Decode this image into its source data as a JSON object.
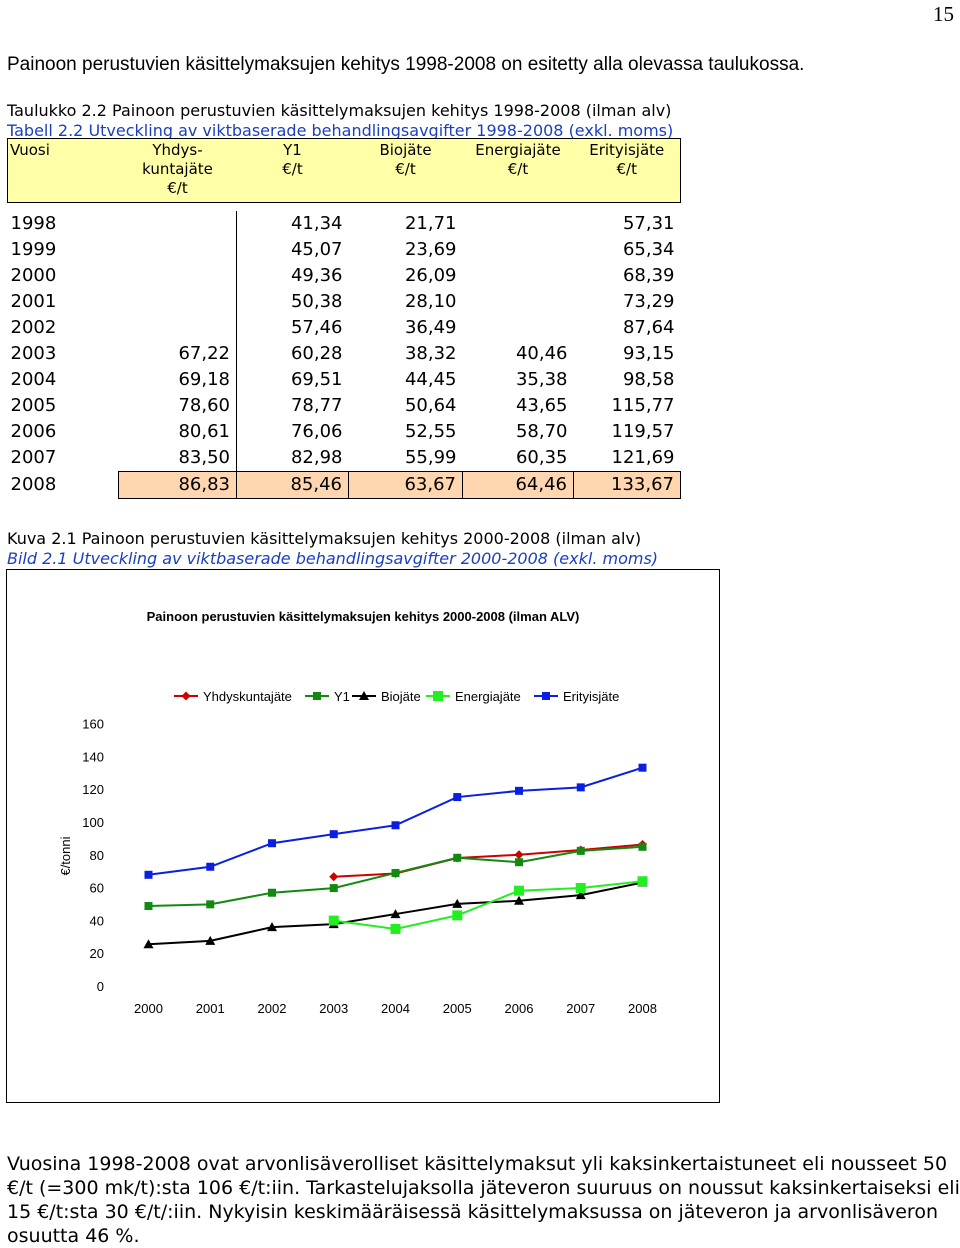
{
  "page_number": "15",
  "intro_text": "Painoon perustuvien käsittelymaksujen kehitys 1998-2008 on esitetty alla olevassa taulukossa.",
  "table_caption_fi": "Taulukko 2.2 Painoon perustuvien käsittelymaksujen kehitys 1998-2008 (ilman alv)",
  "table_caption_sv": "Tabell 2.2 Utveckling av viktbaserade behandlingsavgifter 1998-2008 (exkl. moms)",
  "table": {
    "headers": [
      {
        "line1": "Vuosi",
        "line2": "",
        "line3": ""
      },
      {
        "line1": "Yhdys-",
        "line2": "kuntajäte",
        "line3": "€/t"
      },
      {
        "line1": "Y1",
        "line2": "€/t",
        "line3": ""
      },
      {
        "line1": "Biojäte",
        "line2": "€/t",
        "line3": ""
      },
      {
        "line1": "Energiajäte",
        "line2": "€/t",
        "line3": ""
      },
      {
        "line1": "Erityisjäte",
        "line2": "€/t",
        "line3": ""
      }
    ],
    "rows": [
      [
        "1998",
        "",
        "41,34",
        "21,71",
        "",
        "57,31"
      ],
      [
        "1999",
        "",
        "45,07",
        "23,69",
        "",
        "65,34"
      ],
      [
        "2000",
        "",
        "49,36",
        "26,09",
        "",
        "68,39"
      ],
      [
        "2001",
        "",
        "50,38",
        "28,10",
        "",
        "73,29"
      ],
      [
        "2002",
        "",
        "57,46",
        "36,49",
        "",
        "87,64"
      ],
      [
        "2003",
        "67,22",
        "60,28",
        "38,32",
        "40,46",
        "93,15"
      ],
      [
        "2004",
        "69,18",
        "69,51",
        "44,45",
        "35,38",
        "98,58"
      ],
      [
        "2005",
        "78,60",
        "78,77",
        "50,64",
        "43,65",
        "115,77"
      ],
      [
        "2006",
        "80,61",
        "76,06",
        "52,55",
        "58,70",
        "119,57"
      ],
      [
        "2007",
        "83,50",
        "82,98",
        "55,99",
        "60,35",
        "121,69"
      ],
      [
        "2008",
        "86,83",
        "85,46",
        "63,67",
        "64,46",
        "133,67"
      ]
    ],
    "highlight_color": "#ffd6b0",
    "header_color": "#ffffa8"
  },
  "figure_caption_fi": "Kuva 2.1 Painoon perustuvien käsittelymaksujen kehitys 2000-2008 (ilman alv)",
  "figure_caption_sv": "Bild 2.1 Utveckling av viktbaserade behandlingsavgifter 2000-2008 (exkl. moms)",
  "chart_data": {
    "type": "line",
    "title": "Painoon perustuvien käsittelymaksujen kehitys 2000-2008 (ilman ALV)",
    "xlabel": "",
    "ylabel": "€/tonni",
    "x": [
      "2000",
      "2001",
      "2002",
      "2003",
      "2004",
      "2005",
      "2006",
      "2007",
      "2008"
    ],
    "yticks": [
      "0",
      "20",
      "40",
      "60",
      "80",
      "100",
      "120",
      "140",
      "160"
    ],
    "ylim": [
      0,
      160
    ],
    "grid": false,
    "legend_position": "top",
    "series": [
      {
        "name": "Yhdyskuntajäte",
        "color": "#cc0000",
        "marker": "diamond",
        "values": [
          null,
          null,
          null,
          67.22,
          69.18,
          78.6,
          80.61,
          83.5,
          86.83
        ]
      },
      {
        "name": "Y1",
        "color": "#128a12",
        "marker": "square",
        "values": [
          49.36,
          50.38,
          57.46,
          60.28,
          69.51,
          78.77,
          76.06,
          82.98,
          85.46
        ]
      },
      {
        "name": "Biojäte",
        "color": "#000000",
        "marker": "triangle",
        "values": [
          26.09,
          28.1,
          36.49,
          38.32,
          44.45,
          50.64,
          52.55,
          55.99,
          63.67
        ]
      },
      {
        "name": "Energiajäte",
        "color": "#22ee22",
        "marker": "square-large",
        "values": [
          null,
          null,
          null,
          40.46,
          35.38,
          43.65,
          58.7,
          60.35,
          64.46
        ]
      },
      {
        "name": "Erityisjäte",
        "color": "#0a1fe0",
        "marker": "square",
        "values": [
          68.39,
          73.29,
          87.64,
          93.15,
          98.58,
          115.77,
          119.57,
          121.69,
          133.67
        ]
      }
    ]
  },
  "body_text": "Vuosina 1998-2008 ovat arvonlisäverolliset käsittelymaksut yli kaksinkertaistuneet eli nousseet 50 €/t (=300 mk/t):sta 106 €/t:iin. Tarkastelujaksolla jäteveron suuruus on noussut kaksinkertaiseksi eli 15 €/t:sta 30 €/t/:iin. Nykyisin keskimääräisessä käsittelymaksussa on jäteveron ja arvonlisäveron osuutta 46 %."
}
